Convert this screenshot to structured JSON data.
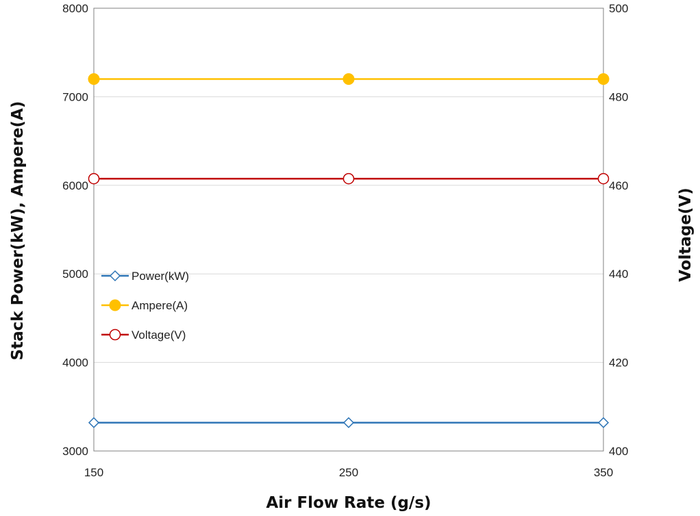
{
  "chart_data": {
    "type": "line",
    "title": "",
    "xlabel": "Air Flow Rate (g/s)",
    "ylabel": "Stack Power(kW),  Ampere(A)",
    "y2label": "Voltage(V)",
    "x": [
      150,
      250,
      350
    ],
    "xlim": [
      150,
      350
    ],
    "xticks": [
      "150",
      "250",
      "350"
    ],
    "ylim": [
      3000,
      8000
    ],
    "yticks": [
      "3000",
      "4000",
      "5000",
      "6000",
      "7000",
      "8000"
    ],
    "y2lim": [
      400,
      500
    ],
    "y2ticks": [
      "400",
      "420",
      "440",
      "460",
      "480",
      "500"
    ],
    "grid": true,
    "legend_position": "left",
    "series": [
      {
        "name": "Power(kW)",
        "axis": "left",
        "values": [
          3320,
          3320,
          3320
        ],
        "color": "#2e75b6",
        "marker": "diamond-open"
      },
      {
        "name": "Ampere(A)",
        "axis": "left",
        "values": [
          7200,
          7200,
          7200
        ],
        "color": "#ffc000",
        "marker": "circle-filled"
      },
      {
        "name": "Voltage(V)",
        "axis": "right",
        "values": [
          461.5,
          461.5,
          461.5
        ],
        "color": "#c00000",
        "marker": "circle-open"
      }
    ]
  }
}
